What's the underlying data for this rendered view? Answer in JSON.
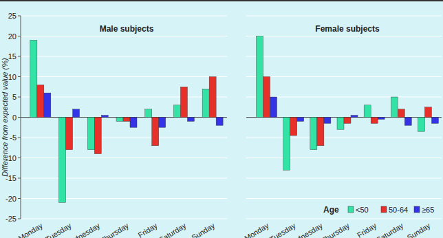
{
  "chart_data": [
    {
      "type": "bar",
      "title": "Male subjects",
      "y_label": "Difference from expected value (%)",
      "categories": [
        "Monday",
        "Tuesday",
        "Wednesday",
        "Thursday",
        "Friday",
        "Saturday",
        "Sunday"
      ],
      "series": [
        {
          "name": "<50",
          "color": "#33e3a6",
          "values": [
            19,
            -21,
            -8,
            -1,
            2,
            3,
            7
          ]
        },
        {
          "name": "50-64",
          "color": "#e8302a",
          "values": [
            8,
            -8,
            -9,
            -1,
            -7,
            7.5,
            10
          ]
        },
        {
          "name": "≥65",
          "color": "#3434e6",
          "values": [
            6,
            2,
            0.5,
            -2.5,
            -2.5,
            -1,
            -2
          ]
        }
      ],
      "ylim": [
        -25,
        25
      ],
      "yticks": [
        -25,
        -20,
        -15,
        -10,
        -5,
        0,
        5,
        10,
        15,
        20,
        25
      ],
      "grid": true
    },
    {
      "type": "bar",
      "title": "Female subjects",
      "categories": [
        "Monday",
        "Tuesday",
        "Wednesday",
        "Thursday",
        "Friday",
        "Saturday",
        "Sunday"
      ],
      "series": [
        {
          "name": "<50",
          "color": "#33e3a6",
          "values": [
            20,
            -13,
            -8,
            -3,
            3,
            5,
            -3.5
          ]
        },
        {
          "name": "50-64",
          "color": "#e8302a",
          "values": [
            10,
            -4.5,
            -7,
            -1.5,
            -1.5,
            2,
            2.5
          ]
        },
        {
          "name": "≥65",
          "color": "#3434e6",
          "values": [
            5,
            -1,
            -1.5,
            0.5,
            -0.5,
            -2,
            -1.5
          ]
        }
      ],
      "ylim": [
        -25,
        25
      ],
      "yticks": [
        -25,
        -20,
        -15,
        -10,
        -5,
        0,
        5,
        10,
        15,
        20,
        25
      ],
      "grid": true,
      "tick_labels": "x",
      "legend": "lower right",
      "legend_title": "Age"
    }
  ]
}
